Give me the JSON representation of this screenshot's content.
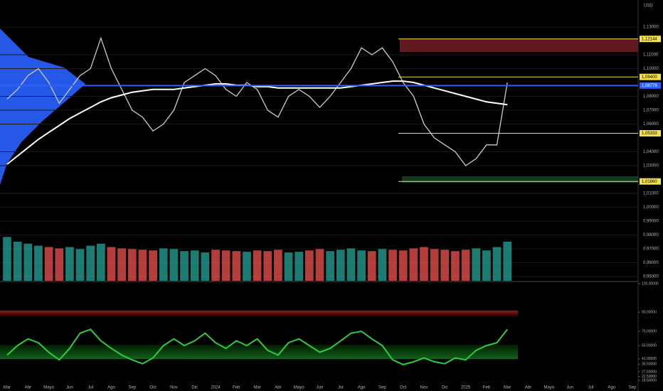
{
  "chart_data": [
    {
      "type": "line",
      "currency": "USD",
      "categories": [
        "Mar",
        null,
        "Abr",
        null,
        "Mayo",
        null,
        "Jun",
        null,
        "Jul",
        null,
        "Ago",
        null,
        "Sep",
        null,
        "Oct",
        null,
        "Nov",
        null,
        "Dic",
        null,
        "2024",
        null,
        "Feb",
        null,
        "Mar",
        null,
        "Abr",
        null,
        "Mayo",
        null,
        "Jun",
        null,
        "Jul",
        null,
        "Ago",
        null,
        "Sep",
        null,
        "Oct",
        null,
        "Nov",
        null,
        "Dic",
        null,
        "2025",
        null,
        "Feb",
        null,
        "Mar",
        null,
        "Abr",
        null,
        "Mayo",
        null,
        "Jun",
        null,
        "Jul",
        null,
        "Ago",
        null,
        "Sep"
      ],
      "series": [
        {
          "color": "#c9ccd4",
          "values": [
            1.078,
            1.085,
            1.095,
            1.1,
            1.09,
            1.075,
            1.085,
            1.095,
            1.1,
            1.122,
            1.1,
            1.085,
            1.07,
            1.065,
            1.055,
            1.06,
            1.07,
            1.09,
            1.095,
            1.1,
            1.095,
            1.085,
            1.08,
            1.09,
            1.085,
            1.07,
            1.065,
            1.08,
            1.085,
            1.08,
            1.072,
            1.08,
            1.09,
            1.1,
            1.115,
            1.11,
            1.115,
            1.105,
            1.09,
            1.08,
            1.06,
            1.05,
            1.045,
            1.04,
            1.03,
            1.035,
            1.045,
            1.045,
            1.09,
            null,
            null,
            null,
            null,
            null,
            null,
            null,
            null,
            null,
            null,
            null,
            null
          ]
        },
        {
          "color": "#ffffff",
          "values": [
            1.031,
            1.037,
            1.043,
            1.049,
            1.054,
            1.059,
            1.064,
            1.068,
            1.072,
            1.076,
            1.079,
            1.081,
            1.083,
            1.084,
            1.085,
            1.085,
            1.085,
            1.086,
            1.087,
            1.088,
            1.089,
            1.089,
            1.088,
            1.088,
            1.087,
            1.087,
            1.086,
            1.086,
            1.086,
            1.086,
            1.086,
            1.086,
            1.086,
            1.087,
            1.088,
            1.089,
            1.09,
            1.091,
            1.091,
            1.09,
            1.088,
            1.086,
            1.084,
            1.082,
            1.08,
            1.078,
            1.076,
            1.075,
            1.074,
            null,
            null,
            null,
            null,
            null,
            null,
            null,
            null,
            null,
            null,
            null,
            null
          ]
        }
      ],
      "ylim": [
        0.9464,
        1.1495
      ],
      "yticks": [
        {
          "value": 1.13,
          "label": "1,13000"
        },
        {
          "value": 1.11,
          "label": "1,11000"
        },
        {
          "value": 1.1,
          "label": "1,10000"
        },
        {
          "value": 1.08,
          "label": "1,08000"
        },
        {
          "value": 1.07,
          "label": "1,07000"
        },
        {
          "value": 1.06,
          "label": "1,06000"
        },
        {
          "value": 1.04,
          "label": "1,04000"
        },
        {
          "value": 1.03,
          "label": "1,03000"
        },
        {
          "value": 1.01,
          "label": "1,01000"
        },
        {
          "value": 1.0,
          "label": "1,00000"
        },
        {
          "value": 0.99,
          "label": "0,99000"
        },
        {
          "value": 0.98,
          "label": "0,98000"
        },
        {
          "value": 0.97,
          "label": "0,97000"
        },
        {
          "value": 0.96,
          "label": "0,96000"
        },
        {
          "value": 0.95,
          "label": "0,95000"
        }
      ],
      "levels": [
        {
          "value": 1.12144,
          "label": "1,12144",
          "color": "#f5e04a"
        },
        {
          "value": 1.094,
          "label": "1,09400",
          "color": "#f5e04a"
        },
        {
          "value": 1.08779,
          "label": "1,08779",
          "color": "#2962ff"
        },
        {
          "value": 1.05333,
          "label": "1,05333",
          "color": "#f5e04a"
        },
        {
          "value": 1.0186,
          "label": "1,01860",
          "color": "#f5e04a"
        }
      ]
    },
    {
      "type": "bar",
      "colors": [
        "#26a69a",
        "#ef5350"
      ],
      "ylim": [
        0,
        100
      ],
      "values": [
        65,
        58,
        55,
        52,
        50,
        48,
        50,
        47,
        52,
        55,
        50,
        48,
        47,
        46,
        45,
        48,
        47,
        44,
        45,
        42,
        46,
        45,
        44,
        43,
        45,
        44,
        46,
        42,
        43,
        45,
        47,
        44,
        46,
        48,
        45,
        44,
        47,
        46,
        45,
        48,
        50,
        47,
        46,
        44,
        46,
        48,
        45,
        50,
        58,
        null,
        null,
        null,
        null,
        null,
        null,
        null,
        null,
        null,
        null,
        null,
        null
      ]
    },
    {
      "type": "line",
      "color": "#2ecc40",
      "ylim": [
        14.8,
        121.5
      ],
      "values": [
        45,
        55,
        62,
        58,
        48,
        40,
        52,
        68,
        72,
        60,
        52,
        45,
        40,
        36,
        42,
        55,
        62,
        55,
        60,
        68,
        58,
        52,
        60,
        55,
        62,
        50,
        45,
        58,
        62,
        55,
        48,
        52,
        60,
        68,
        70,
        62,
        55,
        40,
        35,
        38,
        42,
        38,
        36,
        42,
        40,
        50,
        55,
        58,
        72,
        null,
        null,
        null,
        null,
        null,
        null,
        null,
        null,
        null,
        null,
        null,
        null
      ],
      "yticks": [
        {
          "value": 120,
          "label": "120,00000"
        },
        {
          "value": 90,
          "label": "90,00000"
        },
        {
          "value": 70,
          "label": "70,00000"
        },
        {
          "value": 55,
          "label": "55,00000"
        },
        {
          "value": 41,
          "label": "41,00000"
        },
        {
          "value": 35.5,
          "label": "35,50000"
        },
        {
          "value": 27.5,
          "label": "27,50000"
        },
        {
          "value": 22.5,
          "label": "22,50000"
        },
        {
          "value": 18.5,
          "label": "18,50000"
        }
      ]
    }
  ]
}
